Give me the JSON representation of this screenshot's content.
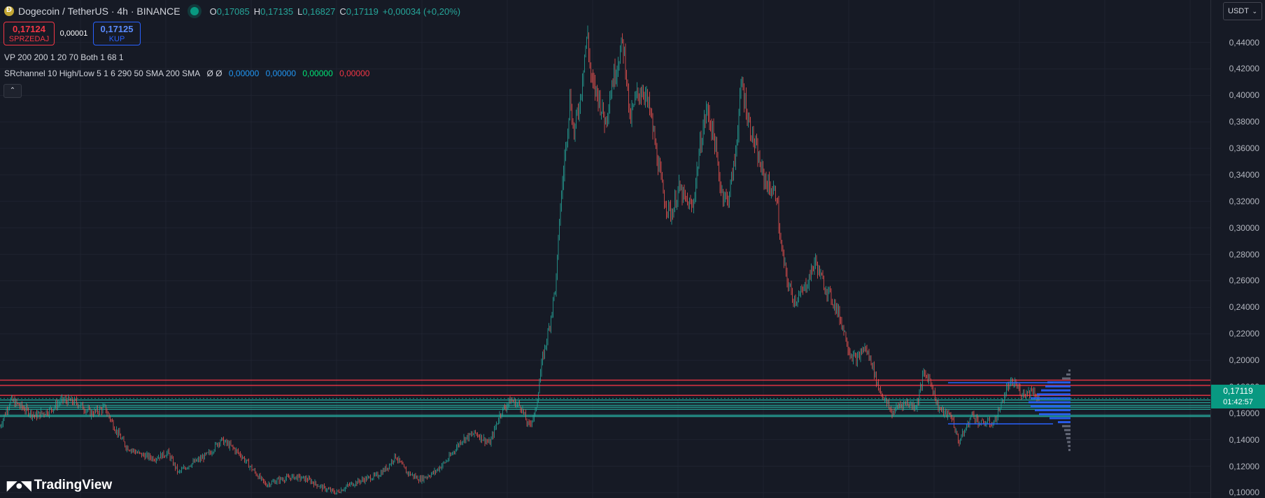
{
  "header": {
    "symbol_title": "Dogecoin / TetherUS · 4h · BINANCE",
    "ohlc": {
      "o_label": "O",
      "o_value": "0,17085",
      "h_label": "H",
      "h_value": "0,17135",
      "l_label": "L",
      "l_value": "0,16827",
      "c_label": "C",
      "c_value": "0,17119",
      "change": "+0,00034 (+0,20%)"
    }
  },
  "trade": {
    "sell_price": "0,17124",
    "sell_label": "SPRZEDAJ",
    "spread": "0,00001",
    "buy_price": "0,17125",
    "buy_label": "KUP"
  },
  "indicators": {
    "vp": "VP 200 200 1 20 70 Both 1 68 1",
    "sr_name": "SRchannel 10 High/Low 5 1 6 290 50 SMA 200 SMA",
    "sr_symbols": "Ø Ø",
    "sr_values": [
      "0,00000",
      "0,00000",
      "0,00000",
      "0,00000"
    ],
    "sr_colors": [
      "#2196f3",
      "#2196f3",
      "#00e676",
      "#f23645"
    ]
  },
  "currency": "USDT",
  "current_price": {
    "price": "0,17119",
    "countdown": "01:42:57"
  },
  "logo_text": "TradingView",
  "colors": {
    "up": "#26a69a",
    "down": "#ef5350",
    "background": "#161a25",
    "volume_profile": "#2962ff"
  },
  "price_axis": {
    "labels": [
      "0,44000",
      "0,42000",
      "0,40000",
      "0,38000",
      "0,36000",
      "0,34000",
      "0,32000",
      "0,30000",
      "0,28000",
      "0,26000",
      "0,24000",
      "0,22000",
      "0,20000",
      "0,18000",
      "0,16000",
      "0,14000",
      "0,12000",
      "0,10000"
    ]
  },
  "chart_data": {
    "type": "candlestick",
    "y_range": [
      0.096,
      0.472
    ],
    "y_ticks": [
      0.44,
      0.42,
      0.4,
      0.38,
      0.36,
      0.34,
      0.32,
      0.3,
      0.28,
      0.26,
      0.24,
      0.22,
      0.2,
      0.18,
      0.16,
      0.14,
      0.12,
      0.1
    ],
    "close_path": [
      [
        0,
        0.15
      ],
      [
        15,
        0.17
      ],
      [
        30,
        0.165
      ],
      [
        50,
        0.158
      ],
      [
        70,
        0.162
      ],
      [
        90,
        0.17
      ],
      [
        110,
        0.168
      ],
      [
        130,
        0.16
      ],
      [
        150,
        0.164
      ],
      [
        165,
        0.148
      ],
      [
        180,
        0.135
      ],
      [
        200,
        0.129
      ],
      [
        220,
        0.126
      ],
      [
        240,
        0.13
      ],
      [
        255,
        0.115
      ],
      [
        270,
        0.121
      ],
      [
        285,
        0.125
      ],
      [
        300,
        0.13
      ],
      [
        315,
        0.14
      ],
      [
        330,
        0.135
      ],
      [
        345,
        0.128
      ],
      [
        360,
        0.118
      ],
      [
        380,
        0.106
      ],
      [
        400,
        0.11
      ],
      [
        420,
        0.112
      ],
      [
        440,
        0.11
      ],
      [
        460,
        0.104
      ],
      [
        480,
        0.1
      ],
      [
        500,
        0.106
      ],
      [
        520,
        0.11
      ],
      [
        540,
        0.113
      ],
      [
        555,
        0.12
      ],
      [
        565,
        0.128
      ],
      [
        580,
        0.116
      ],
      [
        600,
        0.11
      ],
      [
        620,
        0.115
      ],
      [
        640,
        0.125
      ],
      [
        660,
        0.14
      ],
      [
        680,
        0.145
      ],
      [
        700,
        0.137
      ],
      [
        715,
        0.16
      ],
      [
        730,
        0.17
      ],
      [
        745,
        0.165
      ],
      [
        755,
        0.15
      ],
      [
        765,
        0.16
      ],
      [
        775,
        0.2
      ],
      [
        785,
        0.225
      ],
      [
        795,
        0.26
      ],
      [
        800,
        0.31
      ],
      [
        805,
        0.34
      ],
      [
        810,
        0.37
      ],
      [
        815,
        0.4
      ],
      [
        820,
        0.37
      ],
      [
        825,
        0.385
      ],
      [
        830,
        0.4
      ],
      [
        835,
        0.43
      ],
      [
        840,
        0.445
      ],
      [
        845,
        0.41
      ],
      [
        855,
        0.4
      ],
      [
        865,
        0.38
      ],
      [
        875,
        0.41
      ],
      [
        885,
        0.43
      ],
      [
        890,
        0.44
      ],
      [
        895,
        0.42
      ],
      [
        900,
        0.38
      ],
      [
        910,
        0.4
      ],
      [
        920,
        0.405
      ],
      [
        930,
        0.385
      ],
      [
        940,
        0.35
      ],
      [
        950,
        0.32
      ],
      [
        960,
        0.31
      ],
      [
        970,
        0.33
      ],
      [
        980,
        0.32
      ],
      [
        990,
        0.315
      ],
      [
        1000,
        0.36
      ],
      [
        1010,
        0.39
      ],
      [
        1020,
        0.37
      ],
      [
        1030,
        0.33
      ],
      [
        1040,
        0.32
      ],
      [
        1050,
        0.35
      ],
      [
        1060,
        0.41
      ],
      [
        1070,
        0.38
      ],
      [
        1080,
        0.36
      ],
      [
        1090,
        0.34
      ],
      [
        1100,
        0.33
      ],
      [
        1110,
        0.325
      ],
      [
        1115,
        0.29
      ],
      [
        1125,
        0.26
      ],
      [
        1135,
        0.245
      ],
      [
        1145,
        0.25
      ],
      [
        1155,
        0.26
      ],
      [
        1165,
        0.275
      ],
      [
        1175,
        0.26
      ],
      [
        1185,
        0.25
      ],
      [
        1195,
        0.24
      ],
      [
        1205,
        0.225
      ],
      [
        1215,
        0.205
      ],
      [
        1225,
        0.2
      ],
      [
        1235,
        0.21
      ],
      [
        1245,
        0.2
      ],
      [
        1255,
        0.18
      ],
      [
        1265,
        0.17
      ],
      [
        1275,
        0.16
      ],
      [
        1285,
        0.166
      ],
      [
        1295,
        0.168
      ],
      [
        1310,
        0.165
      ],
      [
        1320,
        0.19
      ],
      [
        1330,
        0.185
      ],
      [
        1340,
        0.165
      ],
      [
        1350,
        0.16
      ],
      [
        1360,
        0.158
      ],
      [
        1370,
        0.138
      ],
      [
        1380,
        0.148
      ],
      [
        1390,
        0.16
      ],
      [
        1400,
        0.152
      ],
      [
        1410,
        0.153
      ],
      [
        1420,
        0.152
      ],
      [
        1430,
        0.165
      ],
      [
        1440,
        0.18
      ],
      [
        1450,
        0.183
      ],
      [
        1460,
        0.175
      ],
      [
        1470,
        0.176
      ],
      [
        1475,
        0.178
      ],
      [
        1485,
        0.171
      ]
    ],
    "horizontal_levels": [
      {
        "price": 0.185,
        "color": "#f23645"
      },
      {
        "price": 0.181,
        "color": "#f23645"
      },
      {
        "price": 0.1735,
        "color": "#f23645"
      },
      {
        "price": 0.17,
        "color": "#26a69a"
      },
      {
        "price": 0.168,
        "color": "#26a69a"
      },
      {
        "price": 0.166,
        "color": "#26a69a"
      },
      {
        "price": 0.1645,
        "color": "#26a69a"
      },
      {
        "price": 0.163,
        "color": "#26a69a"
      },
      {
        "price": 0.1585,
        "color": "#26a69a"
      },
      {
        "price": 0.1575,
        "color": "#26a69a"
      }
    ],
    "volume_profile": [
      {
        "price": 0.192,
        "vol": 0.05
      },
      {
        "price": 0.189,
        "vol": 0.1
      },
      {
        "price": 0.186,
        "vol": 0.2
      },
      {
        "price": 0.183,
        "vol": 0.55
      },
      {
        "price": 0.18,
        "vol": 0.6
      },
      {
        "price": 0.177,
        "vol": 0.7
      },
      {
        "price": 0.174,
        "vol": 0.8
      },
      {
        "price": 0.171,
        "vol": 0.95
      },
      {
        "price": 0.168,
        "vol": 1.0
      },
      {
        "price": 0.165,
        "vol": 0.95
      },
      {
        "price": 0.162,
        "vol": 0.85
      },
      {
        "price": 0.159,
        "vol": 0.75
      },
      {
        "price": 0.156,
        "vol": 0.5
      },
      {
        "price": 0.153,
        "vol": 0.3
      },
      {
        "price": 0.15,
        "vol": 0.2
      },
      {
        "price": 0.147,
        "vol": 0.15
      },
      {
        "price": 0.144,
        "vol": 0.12
      },
      {
        "price": 0.141,
        "vol": 0.1
      },
      {
        "price": 0.138,
        "vol": 0.08
      },
      {
        "price": 0.135,
        "vol": 0.06
      },
      {
        "price": 0.132,
        "vol": 0.05
      }
    ],
    "value_area_high": 0.183,
    "value_area_low": 0.152,
    "grid": true,
    "title": "Dogecoin / TetherUS · 4h · BINANCE"
  }
}
